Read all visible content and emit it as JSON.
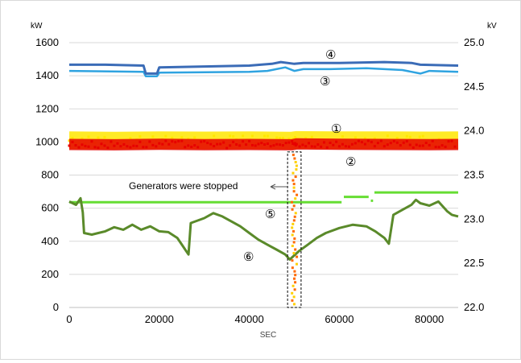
{
  "chart_data": {
    "type": "line",
    "x_label": "SEC",
    "y_left_unit": "kW",
    "y_right_unit": "kV",
    "x_range": [
      0,
      86400
    ],
    "y_left_range": [
      0,
      1600
    ],
    "y_right_range": [
      22.0,
      25.0
    ],
    "x_ticks": [
      "0",
      "20000",
      "40000",
      "60000",
      "80000"
    ],
    "y_left_ticks": [
      "0",
      "200",
      "400",
      "600",
      "800",
      "1000",
      "1200",
      "1400",
      "1600"
    ],
    "y_right_ticks": [
      "22.0",
      "22.5",
      "23.0",
      "23.5",
      "24.0",
      "24.5",
      "25.0"
    ],
    "gridlines": "horizontal",
    "annotation": "Generators were stopped",
    "stop_window": [
      48500,
      51500
    ],
    "series": [
      {
        "label": "④",
        "axis": "right",
        "color": "#3b6cb7",
        "points": [
          [
            0,
            24.75
          ],
          [
            8000,
            24.75
          ],
          [
            16500,
            24.74
          ],
          [
            17000,
            24.65
          ],
          [
            19500,
            24.65
          ],
          [
            20000,
            24.72
          ],
          [
            30000,
            24.73
          ],
          [
            40000,
            24.74
          ],
          [
            45000,
            24.76
          ],
          [
            47000,
            24.78
          ],
          [
            50000,
            24.76
          ],
          [
            52000,
            24.77
          ],
          [
            60000,
            24.77
          ],
          [
            70000,
            24.78
          ],
          [
            76000,
            24.77
          ],
          [
            78000,
            24.75
          ],
          [
            86400,
            24.74
          ]
        ]
      },
      {
        "label": "③",
        "axis": "right",
        "color": "#2fa3e0",
        "points": [
          [
            0,
            24.68
          ],
          [
            16500,
            24.67
          ],
          [
            17000,
            24.62
          ],
          [
            19500,
            24.62
          ],
          [
            20000,
            24.66
          ],
          [
            40000,
            24.67
          ],
          [
            44000,
            24.68
          ],
          [
            46000,
            24.7
          ],
          [
            48000,
            24.72
          ],
          [
            50000,
            24.68
          ],
          [
            52000,
            24.7
          ],
          [
            58000,
            24.7
          ],
          [
            66000,
            24.71
          ],
          [
            74000,
            24.69
          ],
          [
            76000,
            24.67
          ],
          [
            78000,
            24.65
          ],
          [
            80000,
            24.68
          ],
          [
            86400,
            24.67
          ]
        ]
      },
      {
        "label": "①",
        "axis": "left",
        "color": "#ffe600",
        "points": [
          [
            0,
            1010
          ],
          [
            10000,
            1008
          ],
          [
            20000,
            1010
          ],
          [
            30000,
            1009
          ],
          [
            40000,
            1010
          ],
          [
            49500,
            1008
          ],
          [
            50500,
            1012
          ],
          [
            60000,
            1010
          ],
          [
            70000,
            1010
          ],
          [
            80000,
            1009
          ],
          [
            86400,
            1010
          ]
        ]
      },
      {
        "label": "②",
        "axis": "left",
        "color": "#e60000",
        "points": [
          [
            0,
            985
          ],
          [
            10000,
            983
          ],
          [
            20000,
            986
          ],
          [
            30000,
            984
          ],
          [
            40000,
            985
          ],
          [
            49500,
            983
          ],
          [
            50500,
            988
          ],
          [
            60000,
            986
          ],
          [
            70000,
            985
          ],
          [
            80000,
            984
          ],
          [
            86400,
            985
          ]
        ]
      },
      {
        "label": "⑤",
        "axis": "left",
        "color": "#66dd33",
        "points": [
          [
            0,
            636
          ],
          [
            60500,
            636
          ],
          [
            null,
            null
          ],
          [
            61000,
            668
          ],
          [
            66500,
            668
          ],
          [
            null,
            null
          ],
          [
            67000,
            645
          ],
          [
            67500,
            645
          ],
          [
            null,
            null
          ],
          [
            67800,
            695
          ],
          [
            86400,
            695
          ]
        ]
      },
      {
        "label": "⑥",
        "axis": "left",
        "color": "#5a8a2a",
        "points": [
          [
            0,
            640
          ],
          [
            1500,
            620
          ],
          [
            2500,
            660
          ],
          [
            3000,
            575
          ],
          [
            3300,
            450
          ],
          [
            5000,
            440
          ],
          [
            8000,
            460
          ],
          [
            10000,
            485
          ],
          [
            12000,
            470
          ],
          [
            14000,
            500
          ],
          [
            16000,
            470
          ],
          [
            18000,
            490
          ],
          [
            20000,
            460
          ],
          [
            22000,
            455
          ],
          [
            24000,
            420
          ],
          [
            25000,
            380
          ],
          [
            26000,
            340
          ],
          [
            26500,
            320
          ],
          [
            27000,
            510
          ],
          [
            30000,
            540
          ],
          [
            32000,
            570
          ],
          [
            34000,
            550
          ],
          [
            36000,
            520
          ],
          [
            38000,
            490
          ],
          [
            40000,
            450
          ],
          [
            42000,
            410
          ],
          [
            44000,
            380
          ],
          [
            46000,
            350
          ],
          [
            48000,
            320
          ],
          [
            49000,
            290
          ],
          [
            51000,
            340
          ],
          [
            53000,
            380
          ],
          [
            55000,
            420
          ],
          [
            57000,
            450
          ],
          [
            60000,
            480
          ],
          [
            63000,
            500
          ],
          [
            66000,
            490
          ],
          [
            68000,
            460
          ],
          [
            70000,
            420
          ],
          [
            71000,
            385
          ],
          [
            72000,
            560
          ],
          [
            74000,
            590
          ],
          [
            76000,
            620
          ],
          [
            77000,
            650
          ],
          [
            78000,
            630
          ],
          [
            80000,
            615
          ],
          [
            82000,
            640
          ],
          [
            84000,
            580
          ],
          [
            85000,
            560
          ],
          [
            86400,
            550
          ]
        ]
      }
    ]
  }
}
